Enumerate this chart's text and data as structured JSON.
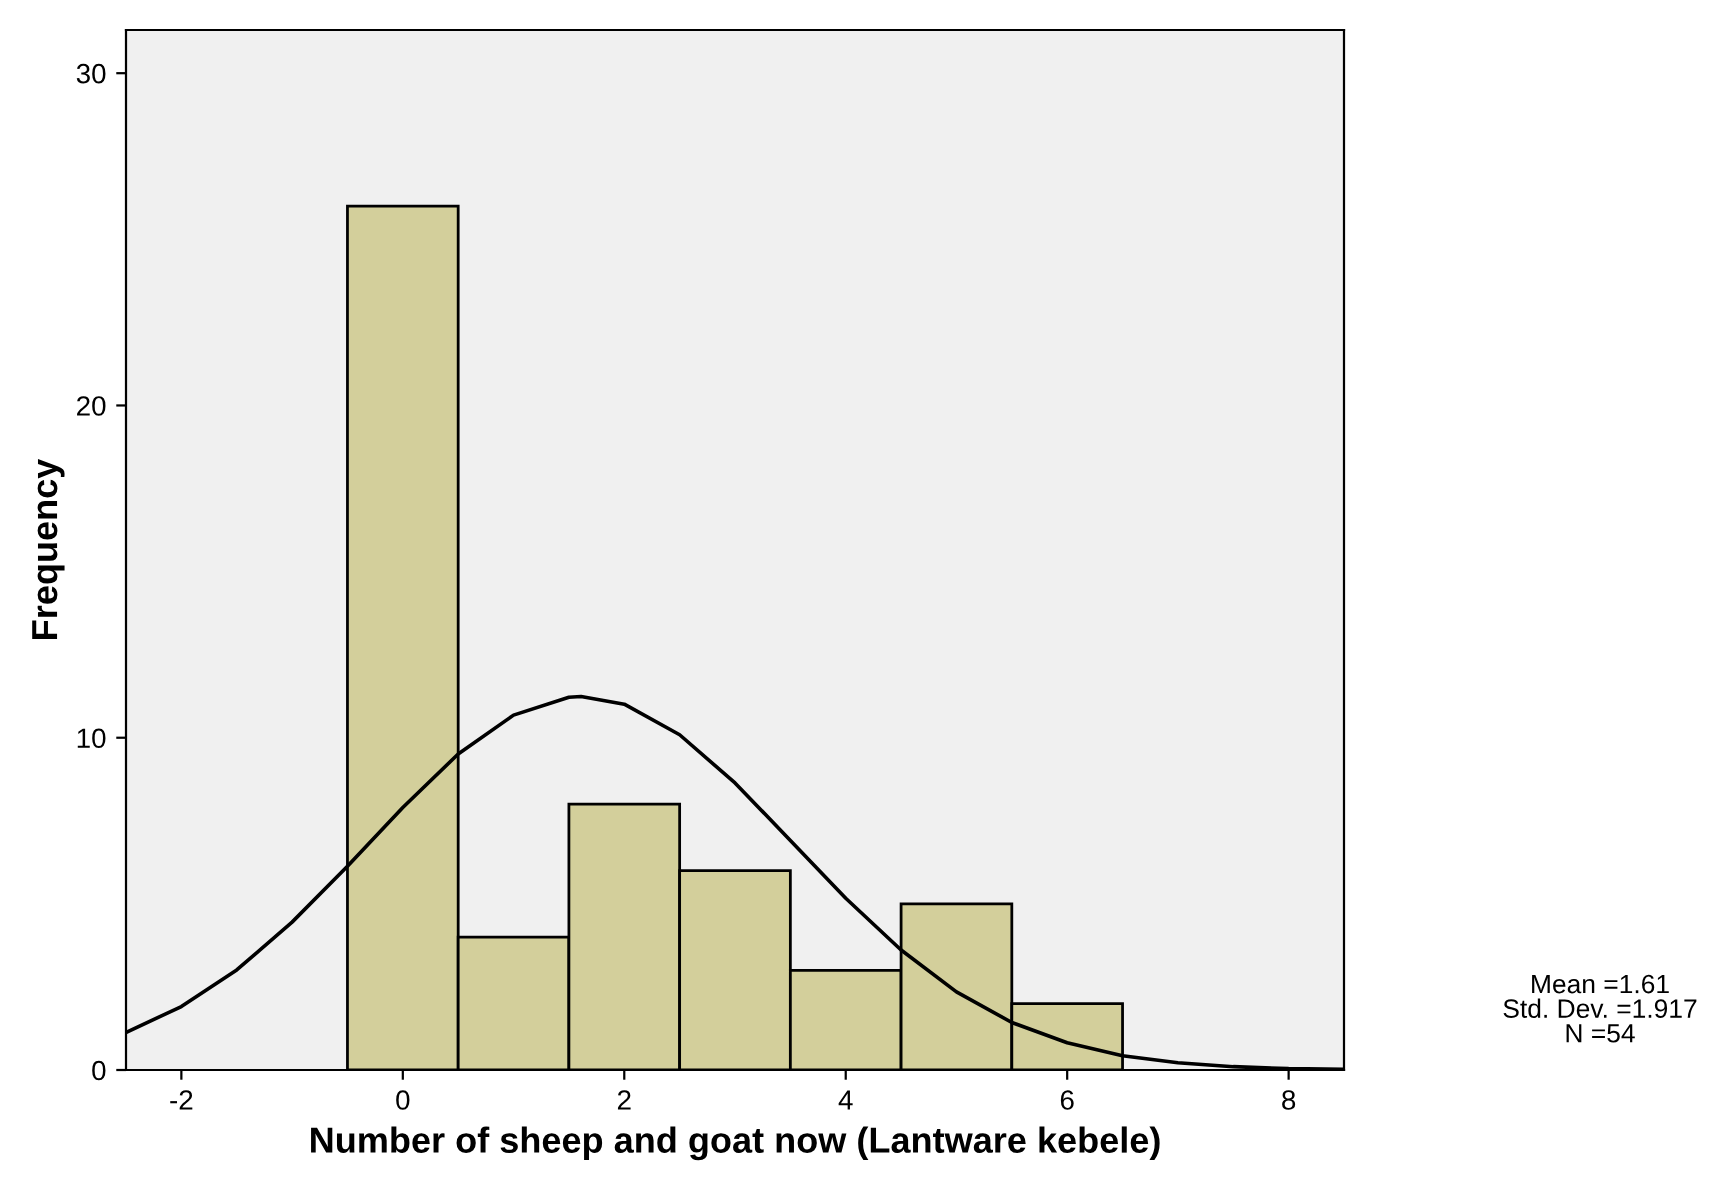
{
  "chart_data": {
    "type": "histogram",
    "xlabel": "Number of sheep and goat now (Lantware kebele)",
    "ylabel": "Frequency",
    "series": [
      {
        "type": "histogram",
        "color": "#d3cf9b",
        "bins": [
          -0.5,
          0.5,
          1.5,
          2.5,
          3.5,
          4.5,
          5.5,
          6.5
        ],
        "values": [
          26,
          4,
          8,
          6,
          3,
          5,
          2
        ]
      },
      {
        "type": "line",
        "color": "#000000",
        "x": [
          -2.5,
          -2,
          -1.5,
          -1,
          -0.5,
          0,
          0.5,
          1,
          1.5,
          1.61,
          2,
          2.5,
          3,
          3.5,
          4,
          4.5,
          5,
          5.5,
          6,
          6.5,
          7,
          7.5,
          8,
          8.5
        ],
        "values": [
          1.13,
          1.91,
          3.01,
          4.45,
          6.13,
          7.9,
          9.51,
          10.68,
          11.22,
          11.24,
          11.01,
          10.09,
          8.64,
          6.91,
          5.17,
          3.61,
          2.35,
          1.43,
          0.82,
          0.43,
          0.22,
          0.1,
          0.04,
          0.02
        ]
      }
    ],
    "xlim": [
      -2.5,
      8.5
    ],
    "ylim": [
      0,
      31.3
    ],
    "xticks": [
      -2,
      0,
      2,
      4,
      6,
      8
    ],
    "yticks": [
      0,
      10,
      20,
      30
    ],
    "grid": false,
    "legend": false,
    "annotations": [
      "Mean =1.61",
      "Std. Dev. =1.917",
      "N =54"
    ]
  }
}
